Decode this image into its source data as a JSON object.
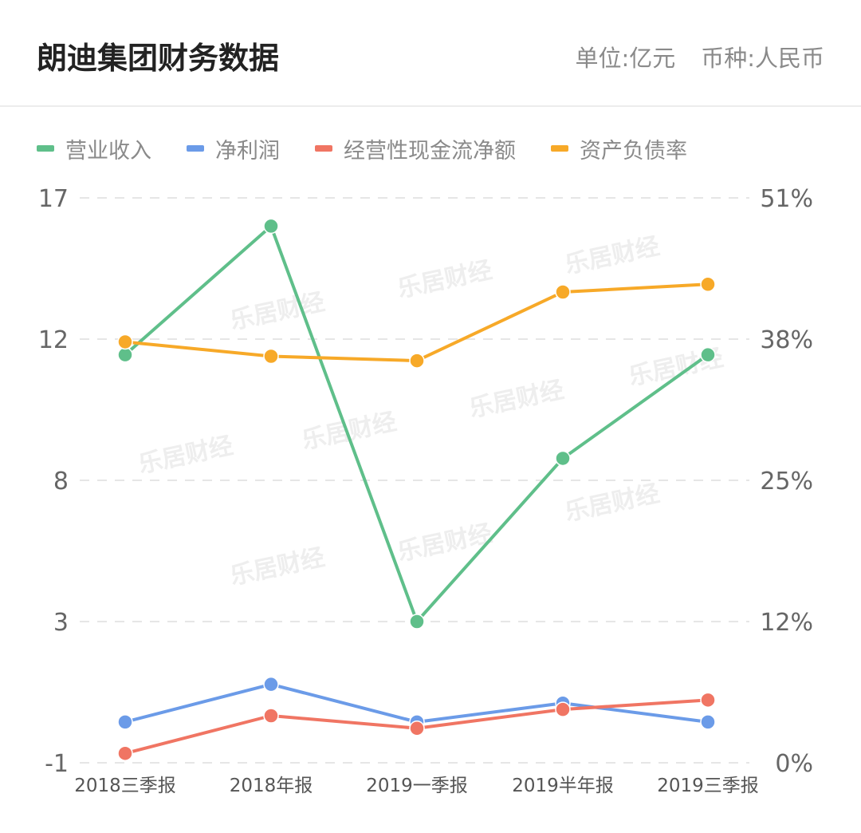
{
  "header": {
    "title": "朗迪集团财务数据",
    "unit": "单位:亿元",
    "currency": "币种:人民币"
  },
  "watermark_text": "乐居财经",
  "chart_data": {
    "type": "line",
    "categories": [
      "2018三季报",
      "2018年报",
      "2019一季报",
      "2019半年报",
      "2019三季报"
    ],
    "series": [
      {
        "name": "营业收入",
        "axis": "left",
        "color": "#5fbf8a",
        "values": [
          12.0,
          16.1,
          3.5,
          8.7,
          12.0
        ]
      },
      {
        "name": "净利润",
        "axis": "left",
        "color": "#6b9be8",
        "values": [
          0.3,
          1.5,
          0.3,
          0.9,
          0.3
        ]
      },
      {
        "name": "经营性现金流净额",
        "axis": "left",
        "color": "#f07563",
        "values": [
          -0.7,
          0.5,
          0.1,
          0.7,
          1.0
        ]
      },
      {
        "name": "资产负债率",
        "axis": "right",
        "color": "#f7a928",
        "values": [
          38,
          36.7,
          36.3,
          42.5,
          43.2
        ]
      }
    ],
    "left_axis": {
      "ticks": [
        "17",
        "12",
        "8",
        "3",
        "-1"
      ],
      "ylim": [
        -1,
        17
      ]
    },
    "right_axis": {
      "ticks": [
        "51%",
        "38%",
        "25%",
        "12%",
        "0%"
      ],
      "ylim": [
        0,
        51
      ]
    },
    "grid": true,
    "legend_position": "top-left"
  }
}
